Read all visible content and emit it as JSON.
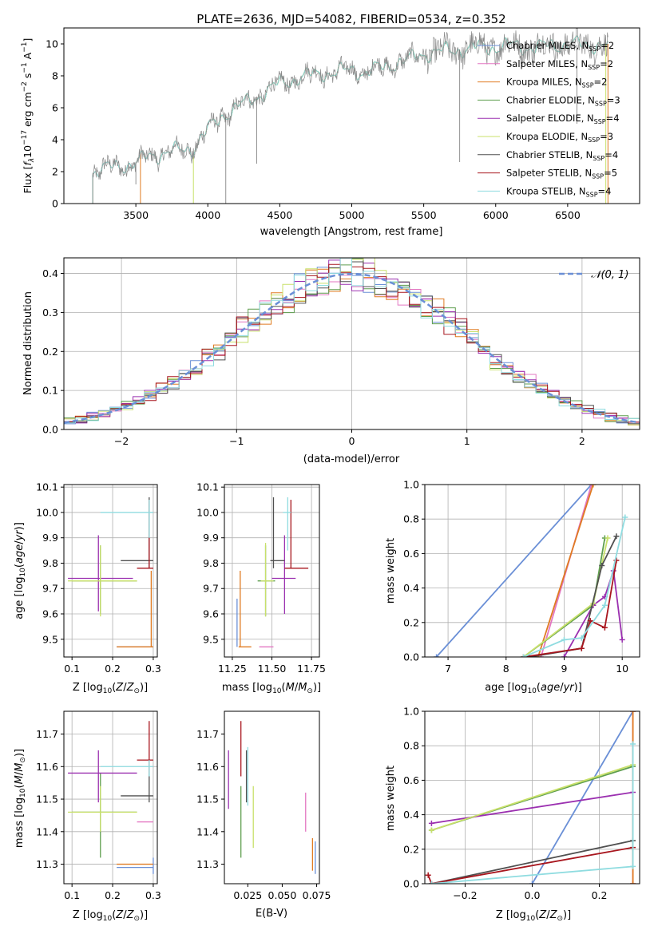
{
  "figure": {
    "title": "PLATE=2636, MJD=54082, FIBERID=0534, z=0.352"
  },
  "colors": {
    "Chabrier MILES": "#6a8fd6",
    "Salpeter MILES": "#e377c2",
    "Kroupa MILES": "#e07b22",
    "Chabrier ELODIE": "#5e9e4e",
    "Salpeter ELODIE": "#9b30b0",
    "Kroupa ELODIE": "#c8e06a",
    "Chabrier STELIB": "#505050",
    "Salpeter STELIB": "#a8161e",
    "Kroupa STELIB": "#8fdce0",
    "normal": "#6a8fd6",
    "grid": "#b0b0b0"
  },
  "chart_data": [
    {
      "id": "spectrum",
      "type": "line",
      "title": "PLATE=2636, MJD=54082, FIBERID=0534, z=0.352",
      "xlabel": "wavelength [Angstrom, rest frame]",
      "ylabel": "Flux [f_λ 10^-17 erg cm^-2 s^-1 A^-1]",
      "xlim": [
        3000,
        7000
      ],
      "ylim": [
        0,
        11
      ],
      "xticks": [
        3500,
        4000,
        4500,
        5000,
        5500,
        6000,
        6500
      ],
      "yticks": [
        0,
        2,
        4,
        6,
        8,
        10
      ],
      "grid": false,
      "legend_position": "upper-right",
      "legend": [
        {
          "label": "Chabrier MILES, N_SSP=2",
          "base": "Chabrier MILES, N",
          "sub": "SSP",
          "tail": "=2"
        },
        {
          "label": "Salpeter MILES, N_SSP=2",
          "base": "Salpeter MILES, N",
          "sub": "SSP",
          "tail": "=2"
        },
        {
          "label": "Kroupa MILES, N_SSP=2",
          "base": "Kroupa MILES, N",
          "sub": "SSP",
          "tail": "=2"
        },
        {
          "label": "Chabrier ELODIE, N_SSP=3",
          "base": "Chabrier ELODIE, N",
          "sub": "SSP",
          "tail": "=3"
        },
        {
          "label": "Salpeter ELODIE, N_SSP=4",
          "base": "Salpeter ELODIE, N",
          "sub": "SSP",
          "tail": "=4"
        },
        {
          "label": "Kroupa ELODIE, N_SSP=3",
          "base": "Kroupa ELODIE, N",
          "sub": "SSP",
          "tail": "=3"
        },
        {
          "label": "Chabrier STELIB, N_SSP=4",
          "base": "Chabrier STELIB, N",
          "sub": "SSP",
          "tail": "=4"
        },
        {
          "label": "Salpeter STELIB, N_SSP=5",
          "base": "Salpeter STELIB, N",
          "sub": "SSP",
          "tail": "=5"
        },
        {
          "label": "Kroupa STELIB, N_SSP=4",
          "base": "Kroupa STELIB, N",
          "sub": "SSP",
          "tail": "=4"
        }
      ],
      "continuum": [
        [
          3200,
          2.0
        ],
        [
          3300,
          2.2
        ],
        [
          3400,
          2.4
        ],
        [
          3500,
          2.5
        ],
        [
          3600,
          3.0
        ],
        [
          3700,
          3.2
        ],
        [
          3800,
          3.3
        ],
        [
          3900,
          3.5
        ],
        [
          4000,
          4.6
        ],
        [
          4100,
          5.5
        ],
        [
          4200,
          6.0
        ],
        [
          4300,
          6.5
        ],
        [
          4400,
          7.0
        ],
        [
          4500,
          7.5
        ],
        [
          4600,
          7.8
        ],
        [
          4700,
          8.0
        ],
        [
          4800,
          8.2
        ],
        [
          4900,
          8.2
        ],
        [
          5000,
          8.4
        ],
        [
          5100,
          8.2
        ],
        [
          5200,
          8.5
        ],
        [
          5300,
          8.8
        ],
        [
          5400,
          9.0
        ],
        [
          5500,
          9.4
        ],
        [
          5600,
          9.5
        ],
        [
          5700,
          9.6
        ],
        [
          5800,
          9.7
        ],
        [
          5900,
          9.8
        ],
        [
          6000,
          9.8
        ],
        [
          6100,
          9.9
        ],
        [
          6200,
          9.8
        ],
        [
          6300,
          9.8
        ],
        [
          6400,
          9.9
        ],
        [
          6500,
          10.0
        ],
        [
          6600,
          9.9
        ],
        [
          6700,
          10.0
        ],
        [
          6780,
          10.0
        ]
      ],
      "model_starts": {
        "MILES": 3530,
        "ELODIE": 3900,
        "STELIB": 3200
      },
      "spikes": [
        [
          4125,
          0.0
        ],
        [
          4340,
          2.5
        ],
        [
          5750,
          2.6
        ],
        [
          6565,
          5.0
        ],
        [
          3500,
          1.2
        ]
      ]
    },
    {
      "id": "residuals",
      "type": "line",
      "title": "",
      "xlabel": "(data-model)/error",
      "ylabel": "Normed distribution",
      "xlim": [
        -2.5,
        2.5
      ],
      "ylim": [
        0,
        0.44
      ],
      "xticks": [
        -2,
        -1,
        0,
        1,
        2
      ],
      "yticks": [
        0.0,
        0.1,
        0.2,
        0.3,
        0.4
      ],
      "grid": true,
      "legend": [
        {
          "label": "𝒩(0, 1)"
        }
      ],
      "bin_width": 0.1,
      "curve": {
        "name": "N(0,1)",
        "mean": 0,
        "sigma": 1
      }
    },
    {
      "id": "age-vs-Z",
      "type": "scatter",
      "xlabel": "Z [log10(Z/Z☉)]",
      "ylabel": "age [log10(age/yr)]",
      "xlim": [
        0.08,
        0.31
      ],
      "ylim": [
        9.43,
        10.11
      ],
      "xticks": [
        0.1,
        0.2,
        0.3
      ],
      "yticks": [
        9.5,
        9.6,
        9.7,
        9.8,
        9.9,
        10.0,
        10.1
      ],
      "grid": true,
      "errorbars": [
        {
          "model": "Chabrier MILES",
          "x": 0.3,
          "y": 9.47,
          "xlo": 0.21,
          "xhi": 0.3,
          "ylo": 9.47,
          "yhi": 9.47
        },
        {
          "model": "Salpeter MILES",
          "x": 0.3,
          "y": 9.47,
          "xlo": 0.3,
          "xhi": 0.3,
          "ylo": 9.47,
          "yhi": 9.47
        },
        {
          "model": "Kroupa MILES",
          "x": 0.295,
          "y": 9.47,
          "xlo": 0.21,
          "xhi": 0.3,
          "ylo": 9.47,
          "yhi": 9.77
        },
        {
          "model": "Chabrier ELODIE",
          "x": 0.17,
          "y": 9.73,
          "xlo": 0.1,
          "xhi": 0.26,
          "ylo": 9.6,
          "yhi": 9.87
        },
        {
          "model": "Salpeter ELODIE",
          "x": 0.165,
          "y": 9.74,
          "xlo": 0.09,
          "xhi": 0.25,
          "ylo": 9.61,
          "yhi": 9.91
        },
        {
          "model": "Kroupa ELODIE",
          "x": 0.17,
          "y": 9.73,
          "xlo": 0.09,
          "xhi": 0.26,
          "ylo": 9.59,
          "yhi": 9.87
        },
        {
          "model": "Chabrier STELIB",
          "x": 0.29,
          "y": 9.81,
          "xlo": 0.22,
          "xhi": 0.3,
          "ylo": 9.78,
          "yhi": 10.06
        },
        {
          "model": "Salpeter STELIB",
          "x": 0.29,
          "y": 9.78,
          "xlo": 0.26,
          "xhi": 0.3,
          "ylo": 9.78,
          "yhi": 10.05
        },
        {
          "model": "Kroupa STELIB",
          "x": 0.29,
          "y": 10.0,
          "xlo": 0.17,
          "xhi": 0.3,
          "ylo": 9.9,
          "yhi": 10.05
        }
      ]
    },
    {
      "id": "age-vs-mass",
      "type": "scatter",
      "xlabel": "mass [log10(M/M☉)]",
      "ylabel": "",
      "xlim": [
        11.2,
        11.8
      ],
      "ylim": [
        9.43,
        10.11
      ],
      "xticks": [
        11.25,
        11.5,
        11.75
      ],
      "yticks": [
        9.5,
        9.6,
        9.7,
        9.8,
        9.9,
        10.0,
        10.1
      ],
      "grid": true,
      "errorbars": [
        {
          "model": "Chabrier MILES",
          "x": 11.28,
          "y": 9.47,
          "xlo": 11.28,
          "xhi": 11.28,
          "ylo": 9.47,
          "yhi": 9.66
        },
        {
          "model": "Salpeter MILES",
          "x": 11.46,
          "y": 9.47,
          "xlo": 11.42,
          "xhi": 11.51,
          "ylo": 9.47,
          "yhi": 9.47
        },
        {
          "model": "Kroupa MILES",
          "x": 11.3,
          "y": 9.47,
          "xlo": 11.29,
          "xhi": 11.37,
          "ylo": 9.47,
          "yhi": 9.77
        },
        {
          "model": "Chabrier ELODIE",
          "x": 11.46,
          "y": 9.73,
          "xlo": 11.41,
          "xhi": 11.52,
          "ylo": 9.59,
          "yhi": 9.87
        },
        {
          "model": "Salpeter ELODIE",
          "x": 11.58,
          "y": 9.74,
          "xlo": 11.5,
          "xhi": 11.65,
          "ylo": 9.6,
          "yhi": 9.91
        },
        {
          "model": "Kroupa ELODIE",
          "x": 11.46,
          "y": 9.73,
          "xlo": 11.43,
          "xhi": 11.51,
          "ylo": 9.59,
          "yhi": 9.88
        },
        {
          "model": "Chabrier STELIB",
          "x": 11.51,
          "y": 9.81,
          "xlo": 11.49,
          "xhi": 11.58,
          "ylo": 9.78,
          "yhi": 10.06
        },
        {
          "model": "Salpeter STELIB",
          "x": 11.62,
          "y": 9.78,
          "xlo": 11.58,
          "xhi": 11.73,
          "ylo": 9.78,
          "yhi": 10.05
        },
        {
          "model": "Kroupa STELIB",
          "x": 11.6,
          "y": 10.0,
          "xlo": 11.57,
          "xhi": 11.62,
          "ylo": 9.85,
          "yhi": 10.06
        }
      ]
    },
    {
      "id": "mass-weight-vs-age",
      "type": "line",
      "xlabel": "age [log10(age/yr)]",
      "ylabel": "mass weight",
      "xlim": [
        6.6,
        10.3
      ],
      "ylim": [
        0,
        1.0
      ],
      "xticks": [
        7,
        8,
        9,
        10
      ],
      "yticks": [
        0.0,
        0.2,
        0.4,
        0.6,
        0.8,
        1.0
      ],
      "grid": true,
      "series": [
        {
          "model": "Chabrier MILES",
          "points": [
            [
              6.8,
              0.0
            ],
            [
              9.47,
              1.0
            ]
          ]
        },
        {
          "model": "Salpeter MILES",
          "points": [
            [
              8.6,
              0.0
            ],
            [
              9.47,
              1.0
            ]
          ]
        },
        {
          "model": "Kroupa MILES",
          "points": [
            [
              8.55,
              0.0
            ],
            [
              9.5,
              1.0
            ]
          ]
        },
        {
          "model": "Chabrier ELODIE",
          "points": [
            [
              8.3,
              0.0
            ],
            [
              9.5,
              0.3
            ],
            [
              9.7,
              0.69
            ]
          ]
        },
        {
          "model": "Salpeter ELODIE",
          "points": [
            [
              9.0,
              0.0
            ],
            [
              9.5,
              0.3
            ],
            [
              9.7,
              0.35
            ],
            [
              9.85,
              0.5
            ],
            [
              10.0,
              0.1
            ]
          ]
        },
        {
          "model": "Kroupa ELODIE",
          "points": [
            [
              8.3,
              0.0
            ],
            [
              9.5,
              0.31
            ],
            [
              9.75,
              0.69
            ]
          ]
        },
        {
          "model": "Chabrier STELIB",
          "points": [
            [
              8.4,
              0.0
            ],
            [
              9.3,
              0.05
            ],
            [
              9.65,
              0.53
            ],
            [
              9.9,
              0.7
            ]
          ]
        },
        {
          "model": "Salpeter STELIB",
          "points": [
            [
              8.3,
              0.0
            ],
            [
              9.3,
              0.05
            ],
            [
              9.45,
              0.21
            ],
            [
              9.7,
              0.17
            ],
            [
              9.9,
              0.56
            ]
          ]
        },
        {
          "model": "Kroupa STELIB",
          "points": [
            [
              8.3,
              0.0
            ],
            [
              9.0,
              0.1
            ],
            [
              9.3,
              0.11
            ],
            [
              9.7,
              0.3
            ],
            [
              10.05,
              0.81
            ]
          ]
        }
      ]
    },
    {
      "id": "mass-vs-Z",
      "type": "scatter",
      "xlabel": "Z [log10(Z/Z☉)]",
      "ylabel": "mass [log10(M/M☉)]",
      "xlim": [
        0.08,
        0.31
      ],
      "ylim": [
        11.24,
        11.77
      ],
      "xticks": [
        0.1,
        0.2,
        0.3
      ],
      "yticks": [
        11.3,
        11.4,
        11.5,
        11.6,
        11.7
      ],
      "grid": true,
      "errorbars": [
        {
          "model": "Chabrier MILES",
          "x": 0.3,
          "y": 11.29,
          "xlo": 0.21,
          "xhi": 0.3,
          "ylo": 11.27,
          "yhi": 11.32
        },
        {
          "model": "Salpeter MILES",
          "x": 0.3,
          "y": 11.43,
          "xlo": 0.26,
          "xhi": 0.3,
          "ylo": 11.43,
          "yhi": 11.43
        },
        {
          "model": "Kroupa MILES",
          "x": 0.3,
          "y": 11.3,
          "xlo": 0.21,
          "xhi": 0.3,
          "ylo": 11.3,
          "yhi": 11.3
        },
        {
          "model": "Chabrier ELODIE",
          "x": 0.17,
          "y": 11.46,
          "xlo": 0.1,
          "xhi": 0.26,
          "ylo": 11.32,
          "yhi": 11.58
        },
        {
          "model": "Salpeter ELODIE",
          "x": 0.165,
          "y": 11.58,
          "xlo": 0.09,
          "xhi": 0.26,
          "ylo": 11.49,
          "yhi": 11.65
        },
        {
          "model": "Kroupa ELODIE",
          "x": 0.17,
          "y": 11.46,
          "xlo": 0.09,
          "xhi": 0.26,
          "ylo": 11.4,
          "yhi": 11.54
        },
        {
          "model": "Chabrier STELIB",
          "x": 0.29,
          "y": 11.51,
          "xlo": 0.22,
          "xhi": 0.3,
          "ylo": 11.49,
          "yhi": 11.58
        },
        {
          "model": "Salpeter STELIB",
          "x": 0.29,
          "y": 11.62,
          "xlo": 0.26,
          "xhi": 0.3,
          "ylo": 11.58,
          "yhi": 11.74
        },
        {
          "model": "Kroupa STELIB",
          "x": 0.29,
          "y": 11.6,
          "xlo": 0.17,
          "xhi": 0.3,
          "ylo": 11.57,
          "yhi": 11.62
        }
      ]
    },
    {
      "id": "mass-vs-EBV",
      "type": "scatter",
      "xlabel": "E(B-V)",
      "ylabel": "",
      "xlim": [
        0.008,
        0.077
      ],
      "ylim": [
        11.24,
        11.77
      ],
      "xticks": [
        0.025,
        0.05,
        0.075
      ],
      "xticklabels": [
        "0.025",
        "0.050",
        "0.075"
      ],
      "yticks": [
        11.3,
        11.4,
        11.5,
        11.6,
        11.7
      ],
      "grid": false,
      "errorbars": [
        {
          "model": "Chabrier MILES",
          "x": 0.074,
          "y": 11.31,
          "ylo": 11.27,
          "yhi": 11.37
        },
        {
          "model": "Salpeter MILES",
          "x": 0.067,
          "y": 11.46,
          "ylo": 11.4,
          "yhi": 11.52
        },
        {
          "model": "Kroupa MILES",
          "x": 0.072,
          "y": 11.33,
          "ylo": 11.28,
          "yhi": 11.38
        },
        {
          "model": "Chabrier ELODIE",
          "x": 0.02,
          "y": 11.43,
          "ylo": 11.32,
          "yhi": 11.54
        },
        {
          "model": "Salpeter ELODIE",
          "x": 0.011,
          "y": 11.56,
          "ylo": 11.47,
          "yhi": 11.65
        },
        {
          "model": "Kroupa ELODIE",
          "x": 0.029,
          "y": 11.45,
          "ylo": 11.35,
          "yhi": 11.54
        },
        {
          "model": "Chabrier STELIB",
          "x": 0.024,
          "y": 11.55,
          "ylo": 11.49,
          "yhi": 11.65
        },
        {
          "model": "Salpeter STELIB",
          "x": 0.02,
          "y": 11.65,
          "ylo": 11.57,
          "yhi": 11.74
        },
        {
          "model": "Kroupa STELIB",
          "x": 0.025,
          "y": 11.57,
          "ylo": 11.48,
          "yhi": 11.66
        }
      ]
    },
    {
      "id": "mass-weight-vs-Z",
      "type": "line",
      "xlabel": "Z [log10(Z/Z☉)]",
      "ylabel": "mass weight",
      "xlim": [
        -0.32,
        0.32
      ],
      "ylim": [
        0,
        1.0
      ],
      "xticks": [
        -0.2,
        0.0,
        0.2
      ],
      "yticks": [
        0.0,
        0.2,
        0.4,
        0.6,
        0.8,
        1.0
      ],
      "grid": true,
      "series": [
        {
          "model": "Chabrier MILES",
          "points": [
            [
              0.0,
              0.0
            ],
            [
              0.3,
              1.0
            ]
          ]
        },
        {
          "model": "Salpeter MILES",
          "points": [
            [
              0.3,
              0.0
            ],
            [
              0.3,
              1.0
            ]
          ]
        },
        {
          "model": "Kroupa MILES",
          "points": [
            [
              0.3,
              0.0
            ],
            [
              0.3,
              1.0
            ]
          ]
        },
        {
          "model": "Chabrier ELODIE",
          "points": [
            [
              -0.3,
              0.31
            ],
            [
              0.3,
              0.68
            ]
          ]
        },
        {
          "model": "Salpeter ELODIE",
          "points": [
            [
              -0.3,
              0.35
            ],
            [
              0.3,
              0.53
            ]
          ]
        },
        {
          "model": "Kroupa ELODIE",
          "points": [
            [
              -0.3,
              0.31
            ],
            [
              0.3,
              0.69
            ]
          ]
        },
        {
          "model": "Chabrier STELIB",
          "points": [
            [
              -0.3,
              0.0
            ],
            [
              0.3,
              0.25
            ]
          ]
        },
        {
          "model": "Salpeter STELIB",
          "points": [
            [
              -0.31,
              0.05
            ],
            [
              -0.3,
              0.0
            ],
            [
              0.3,
              0.21
            ]
          ]
        },
        {
          "model": "Kroupa STELIB",
          "points": [
            [
              -0.3,
              0.0
            ],
            [
              0.3,
              0.1
            ],
            [
              0.3,
              0.81
            ]
          ]
        }
      ]
    }
  ]
}
